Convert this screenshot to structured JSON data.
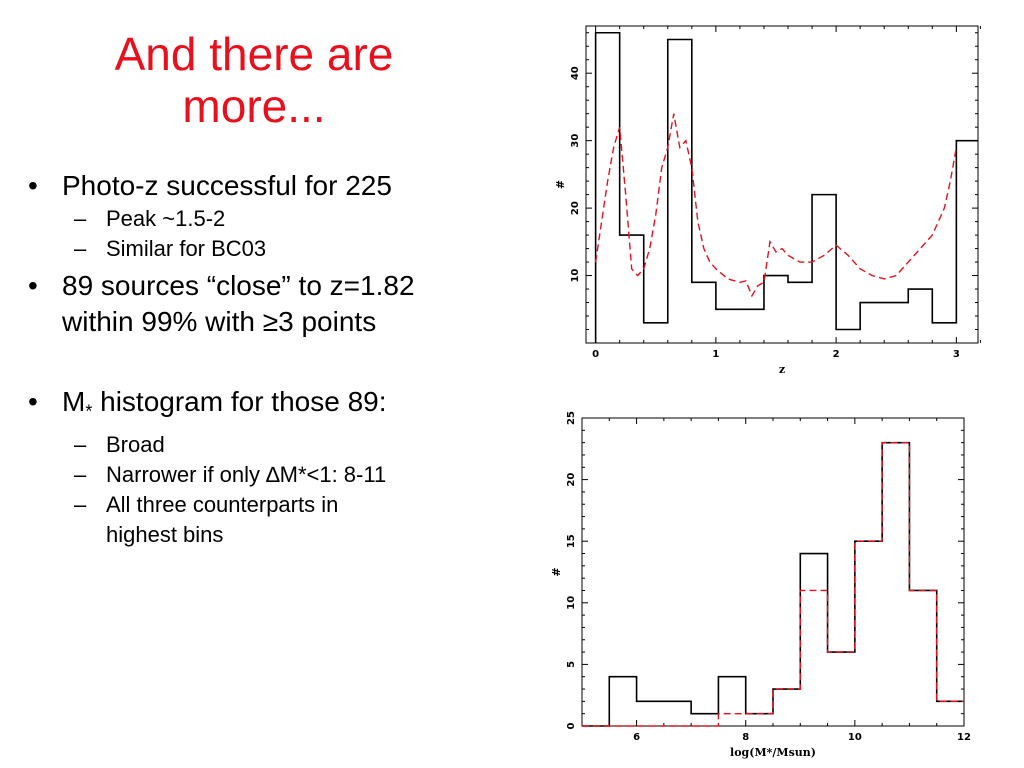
{
  "slide": {
    "title_line1": "And there are",
    "title_line2": "more...",
    "bullets": [
      {
        "text": "Photo-z successful for 225",
        "subs": [
          "Peak ~1.5-2",
          "Similar for BC03"
        ]
      },
      {
        "text": "89 sources “close” to z=1.82",
        "cont": "within 99% with ≥3 points",
        "subs": []
      },
      {
        "text_pre": "M",
        "text_sub": "*",
        "text_post": " histogram for those 89:",
        "subs": [
          "Broad",
          "Narrower if only ∆M*<1: 8-11",
          "All three counterparts in",
          "highest bins"
        ]
      }
    ]
  },
  "chart_data": [
    {
      "type": "histogram",
      "xlabel": "z",
      "ylabel": "#",
      "xlim": [
        -0.08,
        3.18
      ],
      "ylim": [
        0,
        47
      ],
      "xticks": [
        0,
        1,
        2,
        3
      ],
      "yticks": [
        10,
        20,
        30,
        40
      ],
      "colors": {
        "histogram": "#000000",
        "model": "#e8101c"
      },
      "histogram": {
        "edges": [
          0,
          0.2,
          0.4,
          0.6,
          0.8,
          1.0,
          1.2,
          1.4,
          1.6,
          1.8,
          2.0,
          2.2,
          2.4,
          2.6,
          2.8,
          3.0,
          3.2
        ],
        "counts": [
          46,
          16,
          3,
          45,
          9,
          5,
          5,
          10,
          9,
          22,
          2,
          6,
          6,
          8,
          3,
          30
        ]
      },
      "model_curve": {
        "style": "dashed",
        "x": [
          0,
          0.05,
          0.1,
          0.15,
          0.2,
          0.25,
          0.3,
          0.35,
          0.4,
          0.45,
          0.5,
          0.55,
          0.6,
          0.65,
          0.7,
          0.75,
          0.8,
          0.85,
          0.9,
          0.95,
          1.0,
          1.1,
          1.2,
          1.25,
          1.3,
          1.35,
          1.4,
          1.45,
          1.5,
          1.55,
          1.6,
          1.7,
          1.8,
          1.9,
          2.0,
          2.1,
          2.2,
          2.3,
          2.4,
          2.5,
          2.6,
          2.7,
          2.8,
          2.9,
          2.95,
          3.0
        ],
        "y": [
          12,
          18,
          24,
          29,
          32,
          22,
          11,
          10,
          11,
          14,
          19,
          26,
          29,
          34,
          29,
          30,
          26,
          18,
          14,
          12,
          11,
          9.5,
          9,
          9.2,
          7,
          8.5,
          9,
          15,
          13.5,
          14,
          13,
          12,
          12,
          13,
          14.5,
          13,
          11,
          10,
          9.5,
          10,
          12,
          14,
          16,
          20,
          24,
          29
        ]
      }
    },
    {
      "type": "histogram",
      "xlabel": "log(M*/Msun)",
      "ylabel": "#",
      "xlim": [
        5,
        12
      ],
      "ylim": [
        0,
        25
      ],
      "xticks": [
        6,
        8,
        10,
        12
      ],
      "yticks": [
        0,
        5,
        10,
        15,
        20,
        25
      ],
      "colors": {
        "histogram": "#000000",
        "model": "#e8101c"
      },
      "histogram": {
        "edges": [
          5.0,
          5.5,
          6.0,
          6.5,
          7.0,
          7.5,
          8.0,
          8.5,
          9.0,
          9.5,
          10.0,
          10.5,
          11.0,
          11.5,
          12.0
        ],
        "counts": [
          0,
          4,
          2,
          2,
          1,
          4,
          1,
          3,
          14,
          6,
          15,
          23,
          11,
          2
        ]
      },
      "model_histogram": {
        "style": "dashed",
        "edges": [
          5.0,
          5.5,
          6.0,
          6.5,
          7.0,
          7.5,
          8.0,
          8.5,
          9.0,
          9.5,
          10.0,
          10.5,
          11.0,
          11.5,
          12.0
        ],
        "counts": [
          0,
          0,
          0,
          0,
          0,
          1,
          1,
          3,
          11,
          6,
          15,
          23,
          11,
          2
        ]
      }
    }
  ]
}
